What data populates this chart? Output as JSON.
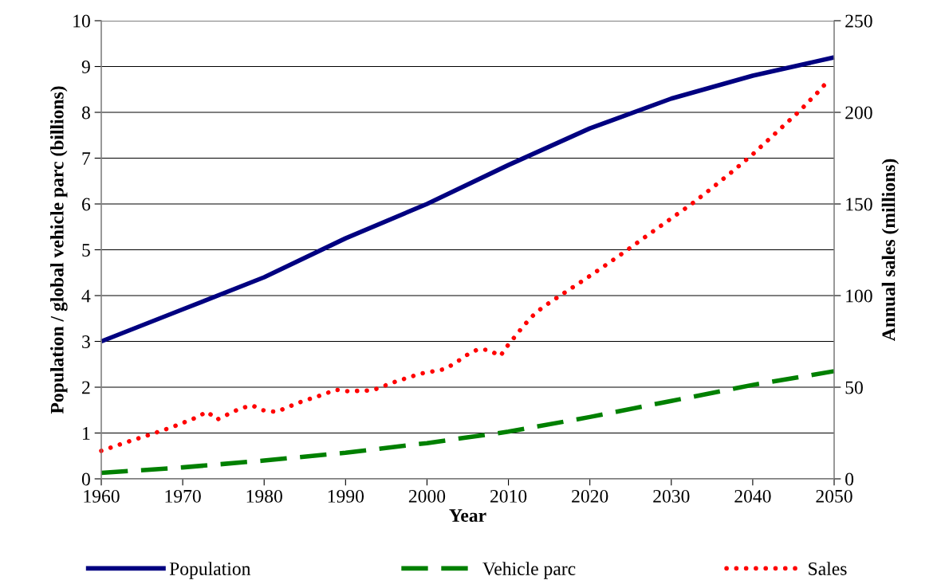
{
  "chart_data": {
    "type": "line",
    "xlabel": "Year",
    "ylabel": "Population / global vehicle parc (billions)",
    "y2label": "Annual sales (millions)",
    "xlim": [
      1960,
      2050
    ],
    "xticks": [
      1960,
      1970,
      1980,
      1990,
      2000,
      2010,
      2020,
      2030,
      2040,
      2050
    ],
    "ylim": [
      0,
      10
    ],
    "yticks": [
      0,
      1,
      2,
      3,
      4,
      5,
      6,
      7,
      8,
      9,
      10
    ],
    "y2lim": [
      0,
      250
    ],
    "y2ticks": [
      0,
      50,
      100,
      150,
      200,
      250
    ],
    "grid": "y",
    "legend": "bottom",
    "series": [
      {
        "name": "Population",
        "color": "#000080",
        "line_style": "solid",
        "x": [
          1960,
          1970,
          1980,
          1990,
          2000,
          2010,
          2020,
          2030,
          2040,
          2050
        ],
        "values": [
          3.0,
          3.7,
          4.4,
          5.25,
          6.0,
          6.85,
          7.65,
          8.3,
          8.8,
          9.2
        ]
      },
      {
        "name": "Vehicle parc",
        "color": "#008000",
        "line_style": "dashed",
        "x": [
          1960,
          1970,
          1980,
          1990,
          2000,
          2010,
          2020,
          2030,
          2040,
          2050
        ],
        "values": [
          0.13,
          0.25,
          0.4,
          0.57,
          0.78,
          1.03,
          1.35,
          1.7,
          2.05,
          2.35
        ]
      },
      {
        "name": "Sales",
        "color": "#ff0000",
        "line_style": "dotted",
        "axis": "y2",
        "x": [
          1960,
          1962.9,
          1965.9,
          1968.8,
          1971.7,
          1973,
          1974.2,
          1977,
          1978.5,
          1979.9,
          1981.5,
          1984.3,
          1987.3,
          1988.8,
          1990.3,
          1993.3,
          1996.3,
          1999.1,
          2002.2,
          2003.5,
          2004.9,
          2006.3,
          2007.6,
          2009,
          2009.9,
          2010.9,
          2011.9,
          2013,
          2014.2,
          2015.5,
          2016.8,
          2019.5,
          2022.1,
          2024.7,
          2027.3,
          2029.9,
          2032.5,
          2035,
          2037.5,
          2039.9,
          2044.6,
          2045.8,
          2046.9,
          2048,
          2049.1
        ],
        "values": [
          15.3,
          19.7,
          24,
          28.4,
          33.5,
          36.7,
          32.3,
          38.3,
          40.1,
          37.4,
          36.5,
          41.7,
          46.1,
          48.6,
          47.8,
          48.3,
          53.3,
          57.3,
          59.9,
          63.3,
          67.6,
          70.8,
          70.3,
          67,
          72.7,
          78.2,
          83.7,
          89,
          93.6,
          97.5,
          101.3,
          109.2,
          117.1,
          125.2,
          133.6,
          141.8,
          150,
          158.7,
          167.7,
          176.7,
          196,
          200.9,
          206,
          211,
          216.4
        ]
      }
    ]
  }
}
